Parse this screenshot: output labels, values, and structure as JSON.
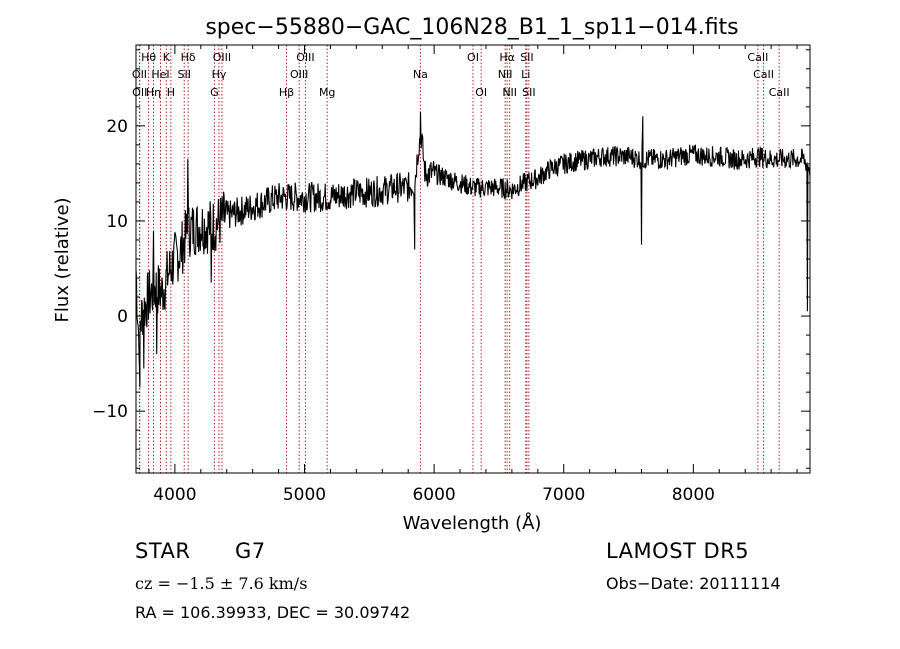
{
  "chart_data": {
    "type": "line",
    "title": "spec−55880−GAC_106N28_B1_1_sp11−014.fits",
    "xlabel": "Wavelength (Å)",
    "ylabel": "Flux (relative)",
    "xlim": [
      3700,
      8900
    ],
    "ylim": [
      -16.5,
      28.5
    ],
    "x_ticks": [
      4000,
      5000,
      6000,
      7000,
      8000
    ],
    "y_ticks": [
      -10,
      0,
      10,
      20
    ],
    "x_tick_labels": [
      "4000",
      "5000",
      "6000",
      "7000",
      "8000"
    ],
    "y_tick_labels": [
      "−10",
      "0",
      "10",
      "20"
    ],
    "grid": false,
    "line_color": "#000000",
    "marker_line_color": "#b22222",
    "spectrum_anchors": [
      [
        3700,
        5.0
      ],
      [
        3720,
        -2.0
      ],
      [
        3750,
        0.5
      ],
      [
        3800,
        2.0
      ],
      [
        3850,
        3.0
      ],
      [
        3900,
        2.5
      ],
      [
        3950,
        4.5
      ],
      [
        4000,
        6.0
      ],
      [
        4050,
        7.0
      ],
      [
        4100,
        9.0
      ],
      [
        4200,
        9.5
      ],
      [
        4300,
        9.5
      ],
      [
        4400,
        10.5
      ],
      [
        4500,
        11.0
      ],
      [
        4600,
        11.5
      ],
      [
        4700,
        12.0
      ],
      [
        4800,
        12.5
      ],
      [
        4900,
        12.5
      ],
      [
        5000,
        12.5
      ],
      [
        5100,
        12.5
      ],
      [
        5200,
        12.5
      ],
      [
        5300,
        12.8
      ],
      [
        5400,
        13.0
      ],
      [
        5500,
        13.0
      ],
      [
        5600,
        13.2
      ],
      [
        5700,
        13.5
      ],
      [
        5800,
        13.5
      ],
      [
        5850,
        14.0
      ],
      [
        5880,
        18.0
      ],
      [
        5900,
        19.0
      ],
      [
        5930,
        15.0
      ],
      [
        6000,
        15.0
      ],
      [
        6100,
        14.5
      ],
      [
        6200,
        14.0
      ],
      [
        6300,
        13.5
      ],
      [
        6400,
        13.5
      ],
      [
        6500,
        13.5
      ],
      [
        6600,
        13.3
      ],
      [
        6700,
        14.0
      ],
      [
        6800,
        14.5
      ],
      [
        6900,
        15.5
      ],
      [
        7000,
        16.0
      ],
      [
        7100,
        16.3
      ],
      [
        7200,
        16.5
      ],
      [
        7300,
        16.8
      ],
      [
        7400,
        16.8
      ],
      [
        7500,
        16.8
      ],
      [
        7600,
        16.5
      ],
      [
        7700,
        16.5
      ],
      [
        7800,
        16.5
      ],
      [
        7900,
        16.8
      ],
      [
        8000,
        17.0
      ],
      [
        8100,
        16.8
      ],
      [
        8200,
        16.8
      ],
      [
        8300,
        16.5
      ],
      [
        8400,
        16.5
      ],
      [
        8500,
        16.8
      ],
      [
        8600,
        16.5
      ],
      [
        8700,
        16.5
      ],
      [
        8800,
        16.5
      ],
      [
        8850,
        16.5
      ],
      [
        8900,
        15.5
      ]
    ],
    "spectrum_features": [
      {
        "x": 3730,
        "y": -7.5
      },
      {
        "x": 3760,
        "y": -5.5
      },
      {
        "x": 3835,
        "y": 9.0
      },
      {
        "x": 3860,
        "y": -4.0
      },
      {
        "x": 4100,
        "y": 16.5
      },
      {
        "x": 4280,
        "y": 3.5
      },
      {
        "x": 5850,
        "y": 7.0
      },
      {
        "x": 5895,
        "y": 21.5
      },
      {
        "x": 7600,
        "y": 7.5
      },
      {
        "x": 7610,
        "y": 21.0
      },
      {
        "x": 8880,
        "y": 0.5
      }
    ],
    "line_markers": [
      {
        "name": "OII",
        "x": 3727,
        "row": 2
      },
      {
        "name": "OII",
        "x": 3729,
        "row": 3
      },
      {
        "name": "Hθ",
        "x": 3797,
        "row": 1
      },
      {
        "name": "Hη",
        "x": 3835,
        "row": 3
      },
      {
        "name": "HeI",
        "x": 3889,
        "row": 2
      },
      {
        "name": "K",
        "x": 3934,
        "row": 1
      },
      {
        "name": "H",
        "x": 3969,
        "row": 3
      },
      {
        "name": "Hδ",
        "x": 4102,
        "row": 1
      },
      {
        "name": "SII",
        "x": 4072,
        "row": 2
      },
      {
        "name": "OIII",
        "x": 4363,
        "row": 1
      },
      {
        "name": "Hγ",
        "x": 4340,
        "row": 2
      },
      {
        "name": "G",
        "x": 4305,
        "row": 3
      },
      {
        "name": "OIII",
        "x": 5007,
        "row": 1
      },
      {
        "name": "OIII",
        "x": 4959,
        "row": 2
      },
      {
        "name": "Hβ",
        "x": 4861,
        "row": 3
      },
      {
        "name": "Mg",
        "x": 5175,
        "row": 3
      },
      {
        "name": "Na",
        "x": 5894,
        "row": 2
      },
      {
        "name": "OI",
        "x": 6300,
        "row": 1
      },
      {
        "name": "OI",
        "x": 6363,
        "row": 3
      },
      {
        "name": "Hα",
        "x": 6563,
        "row": 1
      },
      {
        "name": "NII",
        "x": 6548,
        "row": 2
      },
      {
        "name": "NII",
        "x": 6583,
        "row": 3
      },
      {
        "name": "SII",
        "x": 6716,
        "row": 1
      },
      {
        "name": "Li",
        "x": 6707,
        "row": 2
      },
      {
        "name": "SII",
        "x": 6731,
        "row": 3
      },
      {
        "name": "CaII",
        "x": 8498,
        "row": 1
      },
      {
        "name": "CaII",
        "x": 8542,
        "row": 2
      },
      {
        "name": "CaII",
        "x": 8662,
        "row": 3
      }
    ]
  },
  "footer": {
    "object_class": "STAR",
    "subclass": "G7",
    "survey": "LAMOST DR5",
    "cz_line": "cz = −1.5 ± 7.6 km/s",
    "obs_date_line": "Obs−Date: 20111114",
    "coords_line": "RA = 106.39933, DEC =  30.09742"
  }
}
